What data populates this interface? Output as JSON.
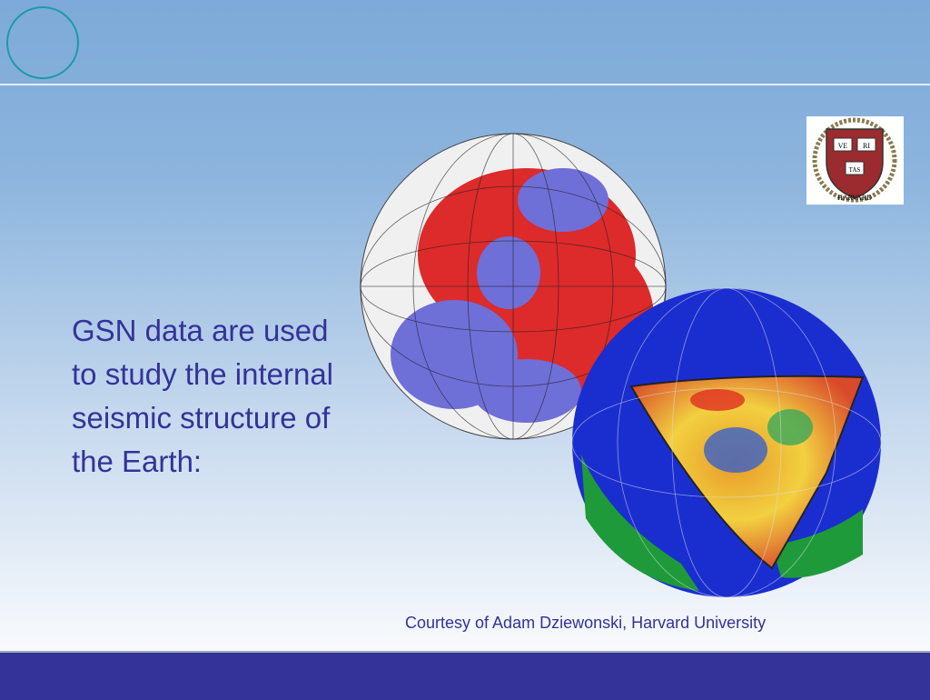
{
  "slide": {
    "body_text": "GSN data are used to study the internal seismic structure of the Earth:",
    "credit": "Courtesy of Adam Dziewonski, Harvard University",
    "logo": {
      "motto_1": "VE",
      "motto_2": "RI",
      "motto_3": "TAS",
      "banner": "HARVARD"
    },
    "colors": {
      "text": "#333399",
      "footer": "#333399",
      "circle": "#1a9aa8"
    }
  }
}
